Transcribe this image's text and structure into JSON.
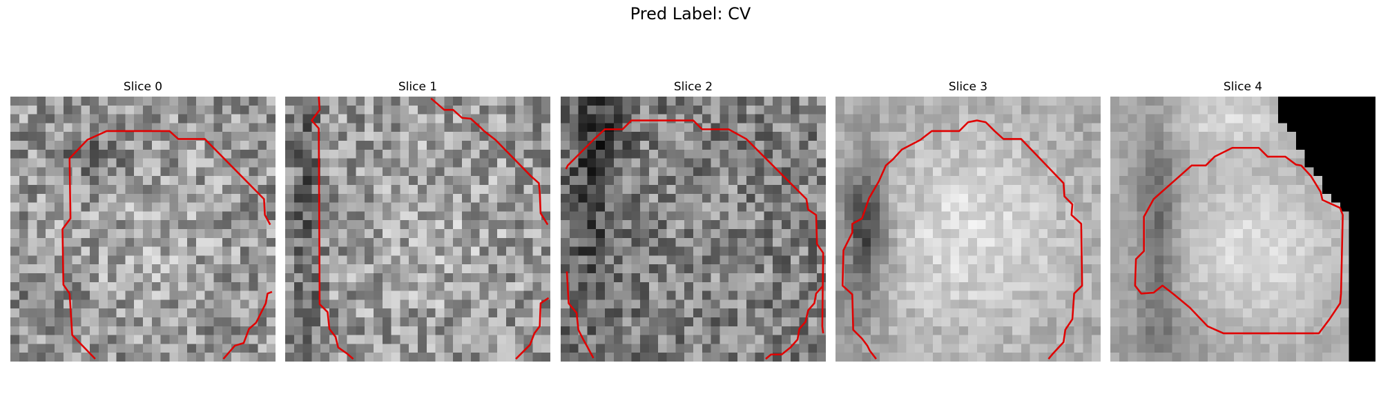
{
  "figure": {
    "title": "Pred Label: CV"
  },
  "panels": [
    {
      "title": "Slice 0",
      "contour_color": "#e00000"
    },
    {
      "title": "Slice 1",
      "contour_color": "#e00000"
    },
    {
      "title": "Slice 2",
      "contour_color": "#e00000"
    },
    {
      "title": "Slice 3",
      "contour_color": "#e00000"
    },
    {
      "title": "Slice 4",
      "contour_color": "#e00000"
    }
  ]
}
